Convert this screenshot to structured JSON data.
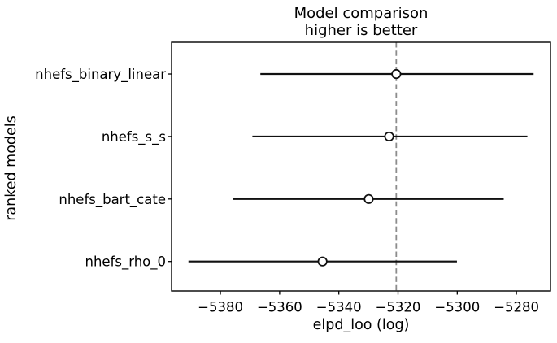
{
  "chart": {
    "title": "Model comparison\nhigher is better",
    "xlabel": "elpd_loo (log)",
    "ylabel": "ranked models"
  },
  "chart_data": {
    "type": "scatter",
    "orientation": "horizontal-errorbar",
    "title": "Model comparison\nhigher is better",
    "xlabel": "elpd_loo (log)",
    "ylabel": "ranked models",
    "xlim": [
      -5396.5,
      -5268.5
    ],
    "xticks": [
      -5380,
      -5360,
      -5340,
      -5320,
      -5300,
      -5280
    ],
    "xtick_labels": [
      "−5380",
      "−5360",
      "−5340",
      "−5320",
      "−5300",
      "−5280"
    ],
    "grid": false,
    "legend": false,
    "vline": {
      "x": -5320.6,
      "style": "dashed",
      "color": "#8c8c8c",
      "meaning": "best model elpd_loo"
    },
    "series": [
      {
        "name": "nhefs_binary_linear",
        "elpd_loo": -5320.6,
        "ci_low": -5366.5,
        "ci_high": -5274.2
      },
      {
        "name": "nhefs_s_s",
        "elpd_loo": -5323.0,
        "ci_low": -5369.2,
        "ci_high": -5276.3
      },
      {
        "name": "nhefs_bart_cate",
        "elpd_loo": -5329.9,
        "ci_low": -5375.7,
        "ci_high": -5284.3
      },
      {
        "name": "nhefs_rho_0",
        "elpd_loo": -5345.5,
        "ci_low": -5390.8,
        "ci_high": -5300.1
      }
    ],
    "colors": {
      "errorbar": "#111111",
      "marker_fill": "#ffffff",
      "marker_edge": "#111111",
      "vline": "#8c8c8c",
      "spine": "#000000",
      "background": "#ffffff"
    }
  }
}
